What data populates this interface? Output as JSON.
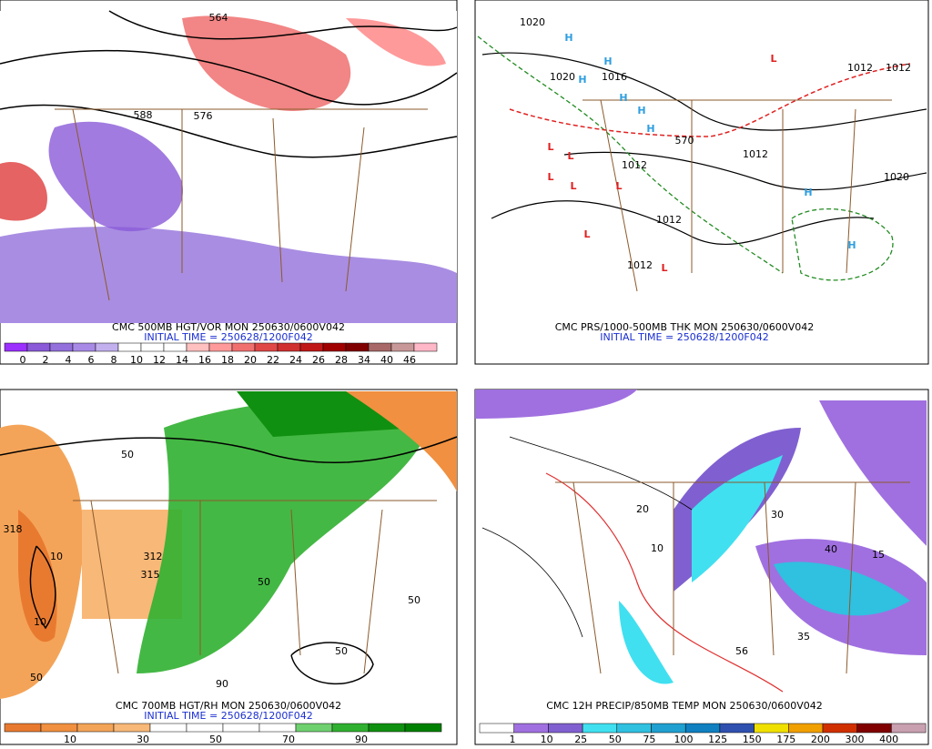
{
  "panels": [
    {
      "caption": "CMC 500MB HGT/VOR MON 250630/0600V042",
      "initial_time": "INITIAL TIME = 250628/1200F042",
      "map_labels": [
        {
          "text": "564"
        },
        {
          "text": "588"
        },
        {
          "text": "576"
        }
      ],
      "colorbar": {
        "labels": [
          "0",
          "2",
          "4",
          "6",
          "8",
          "10",
          "12",
          "14",
          "16",
          "18",
          "20",
          "22",
          "24",
          "26",
          "28",
          "34",
          "40",
          "46"
        ],
        "colors": [
          "#9b30ff",
          "#8a5ad8",
          "#9370db",
          "#a88ae6",
          "#c2b0ee",
          "#ffffff",
          "#ffffff",
          "#ffffff",
          "#ffc0c0",
          "#ff9a9a",
          "#f07070",
          "#e04848",
          "#d03030",
          "#c01818",
          "#a00000",
          "#800000",
          "#a86868",
          "#c89898",
          "#ffb8c8"
        ]
      }
    },
    {
      "caption": "CMC PRS/1000-500MB THK MON 250630/0600V042",
      "initial_time": "INITIAL TIME = 250628/1200F042",
      "map_labels": [
        {
          "text": "1020"
        },
        {
          "text": "1020"
        },
        {
          "text": "1016"
        },
        {
          "text": "1012"
        },
        {
          "text": "1012"
        },
        {
          "text": "1020"
        },
        {
          "text": "1012"
        },
        {
          "text": "1012"
        },
        {
          "text": "1012"
        },
        {
          "text": "1012"
        },
        {
          "text": "570"
        },
        {
          "text": "H",
          "color": "#2f9fe0"
        },
        {
          "text": "H",
          "color": "#2f9fe0"
        },
        {
          "text": "H",
          "color": "#2f9fe0"
        },
        {
          "text": "H",
          "color": "#2f9fe0"
        },
        {
          "text": "H",
          "color": "#2f9fe0"
        },
        {
          "text": "H",
          "color": "#2f9fe0"
        },
        {
          "text": "H",
          "color": "#2f9fe0"
        },
        {
          "text": "H",
          "color": "#2f9fe0"
        },
        {
          "text": "L",
          "color": "#e02020"
        },
        {
          "text": "L",
          "color": "#e02020"
        },
        {
          "text": "L",
          "color": "#e02020"
        },
        {
          "text": "L",
          "color": "#e02020"
        },
        {
          "text": "L",
          "color": "#e02020"
        },
        {
          "text": "L",
          "color": "#e02020"
        },
        {
          "text": "L",
          "color": "#e02020"
        },
        {
          "text": "L",
          "color": "#e02020"
        }
      ]
    },
    {
      "caption": "CMC 700MB HGT/RH MON 250630/0600V042",
      "initial_time": "INITIAL TIME = 250628/1200F042",
      "map_labels": [
        {
          "text": "318"
        },
        {
          "text": "10"
        },
        {
          "text": "10"
        },
        {
          "text": "50"
        },
        {
          "text": "50"
        },
        {
          "text": "50"
        },
        {
          "text": "50"
        },
        {
          "text": "90"
        },
        {
          "text": "312"
        },
        {
          "text": "315"
        },
        {
          "text": "50"
        }
      ],
      "colorbar": {
        "labels": [
          "10",
          "30",
          "50",
          "70",
          "90"
        ],
        "colors": [
          "#e87a30",
          "#f09040",
          "#f4a458",
          "#f8b878",
          "#ffffff",
          "#ffffff",
          "#ffffff",
          "#ffffff",
          "#6fd06f",
          "#30b030",
          "#109010",
          "#008000"
        ]
      }
    },
    {
      "caption": "CMC 12H PRECIP/850MB TEMP MON 250630/0600V042",
      "map_labels": [
        {
          "text": "10"
        },
        {
          "text": "20"
        },
        {
          "text": "56"
        },
        {
          "text": "40"
        },
        {
          "text": "35"
        },
        {
          "text": "30"
        },
        {
          "text": "15"
        }
      ],
      "colorbar": {
        "labels": [
          "1",
          "10",
          "25",
          "50",
          "75",
          "100",
          "125",
          "150",
          "175",
          "200",
          "300",
          "400"
        ],
        "colors": [
          "#ffffff",
          "#a070e0",
          "#8060d0",
          "#40e0f0",
          "#30c0e0",
          "#20a0d0",
          "#1080c0",
          "#3050b0",
          "#f0e000",
          "#f0a000",
          "#d03000",
          "#800000",
          "#c8a0b0"
        ]
      }
    }
  ]
}
